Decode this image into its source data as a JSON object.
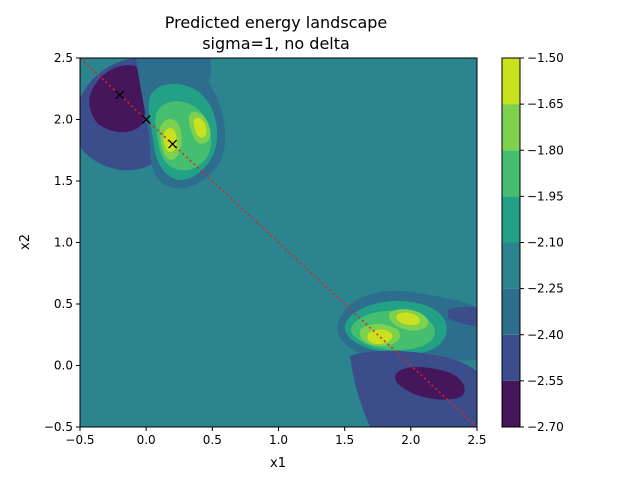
{
  "chart_data": {
    "type": "contour",
    "title": "Predicted energy landscape",
    "subtitle": "sigma=1, no delta",
    "xlabel": "x1",
    "ylabel": "x2",
    "xlim": [
      -0.5,
      2.5
    ],
    "ylim": [
      -0.5,
      2.5
    ],
    "x_ticks": [
      -0.5,
      0.0,
      0.5,
      1.0,
      1.5,
      2.0,
      2.5
    ],
    "x_tick_labels": [
      "−0.5",
      "0.0",
      "0.5",
      "1.0",
      "1.5",
      "2.0",
      "2.5"
    ],
    "y_ticks": [
      -0.5,
      0.0,
      0.5,
      1.0,
      1.5,
      2.0,
      2.5
    ],
    "y_tick_labels": [
      "−0.5",
      "0.0",
      "0.5",
      "1.0",
      "1.5",
      "2.0",
      "2.5"
    ],
    "background_level_color": "#2c848e",
    "colorbar": {
      "levels": [
        -2.7,
        -2.55,
        -2.4,
        -2.25,
        -2.1,
        -1.95,
        -1.8,
        -1.65,
        -1.5
      ],
      "tick_labels": [
        "−2.70",
        "−2.55",
        "−2.40",
        "−2.25",
        "−2.10",
        "−1.95",
        "−1.80",
        "−1.65",
        "−1.50"
      ],
      "colors": [
        "#46165c",
        "#3b4d8b",
        "#2d6e8e",
        "#2c848e",
        "#22a187",
        "#45bf6f",
        "#7ed04f",
        "#cae11f"
      ]
    },
    "markers": {
      "symbol": "x",
      "color": "#000000",
      "points": [
        {
          "x": -0.2,
          "y": 2.2
        },
        {
          "x": 0.0,
          "y": 2.0
        },
        {
          "x": 0.2,
          "y": 1.8
        }
      ]
    },
    "line": {
      "style": "dotted",
      "color": "#d62728",
      "points": [
        {
          "x": -0.5,
          "y": 2.5
        },
        {
          "x": 2.5,
          "y": -0.5
        }
      ]
    }
  }
}
